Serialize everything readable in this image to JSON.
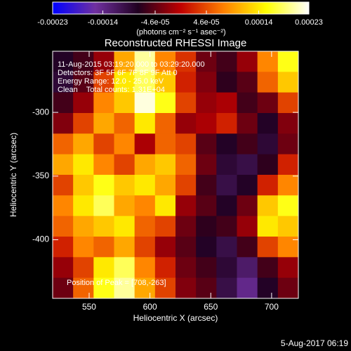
{
  "chart_data": {
    "type": "heatmap",
    "title": "Reconstructed RHESSI Image",
    "xlabel": "Heliocentric X (arcsec)",
    "ylabel": "Heliocentric Y (arcsec)",
    "colorbar_label": "(photons cm⁻² s⁻¹ asec⁻²)",
    "annotations": [
      "11-Aug-2015 03:19:20.000 to 03:29:20.000",
      "Detectors: 3F 5F 6F 7F 8F 9F Att 0",
      "Energy Range: 12.0 - 25.0 keV",
      "Clean    Total counts: 1.31E+04"
    ],
    "peak_label": "Position of Peak = [708,-263]",
    "footer": "5-Aug-2017 06:19",
    "xlim": [
      520,
      722
    ],
    "ylim": [
      -446,
      -252
    ],
    "xticks": [
      550,
      600,
      650,
      700
    ],
    "yticks": [
      -300,
      -350,
      -400
    ],
    "clim": [
      -0.00023,
      0.00023
    ],
    "cticks": [
      -0.00023,
      -0.00014,
      {
        "value": -4.6e-05,
        "label": "-4.6e-05"
      },
      {
        "value": 4.6e-05,
        "label": "4.6e-05"
      },
      0.00014,
      0.00023
    ],
    "colormap": [
      "#0000ff",
      "#7030a0",
      "#200020",
      "#c00000",
      "#ff8000",
      "#ffff00",
      "#ffffff"
    ],
    "values": [
      [
        -8e-05,
        -6e-05,
        -2e-05,
        0.0001,
        0.0002,
        8e-05,
        3e-05,
        -4e-05,
        -6e-05,
        -2e-05,
        8e-05,
        0.00016
      ],
      [
        -9e-05,
        -5e-05,
        4e-05,
        0.00014,
        0.00018,
        0.00012,
        2e-05,
        -3e-05,
        -7e-05,
        -5e-05,
        6e-05,
        0.00012
      ],
      [
        -6e-05,
        -2e-05,
        8e-05,
        0.00012,
        0.00022,
        0.00016,
        4e-05,
        -2e-05,
        -1e-05,
        -6e-05,
        -4e-05,
        4e-05
      ],
      [
        -3e-05,
        4e-05,
        0.0001,
        6e-05,
        0.00014,
        6e-05,
        -2e-05,
        -1e-05,
        2e-05,
        -4e-05,
        -8e-05,
        -3e-05
      ],
      [
        6e-05,
        0.0001,
        4e-05,
        8e-05,
        -1e-05,
        6e-05,
        4e-05,
        -5e-05,
        -8e-05,
        -6e-05,
        -9e-05,
        -4e-05
      ],
      [
        0.0001,
        0.00014,
        8e-05,
        4e-05,
        0.0001,
        0.00012,
        6e-05,
        -4e-05,
        -9e-05,
        -0.0001,
        -7e-05,
        2e-05
      ],
      [
        4e-05,
        0.00012,
        0.00016,
        0.00012,
        0.00014,
        0.0001,
        4e-05,
        -6e-05,
        -0.0001,
        -8e-05,
        2e-05,
        8e-05
      ],
      [
        8e-05,
        0.00014,
        0.00018,
        0.0001,
        8e-05,
        0.00014,
        -2e-05,
        -5e-05,
        -8e-05,
        -4e-05,
        0.00012,
        0.00016
      ],
      [
        6e-05,
        0.0001,
        0.00012,
        0.00014,
        6e-05,
        4e-05,
        -4e-05,
        -7e-05,
        -6e-05,
        -2e-05,
        0.00014,
        0.00012
      ],
      [
        2e-05,
        8e-05,
        6e-05,
        0.0001,
        4e-05,
        -2e-05,
        -5e-05,
        -8e-05,
        -0.0001,
        -6e-05,
        4e-05,
        8e-05
      ],
      [
        -2e-05,
        4e-05,
        0.00014,
        0.00018,
        8e-05,
        2e-05,
        -4e-05,
        -6e-05,
        -9e-05,
        -0.00012,
        -6e-05,
        -2e-05
      ],
      [
        -4e-05,
        6e-05,
        0.00016,
        0.0002,
        0.0001,
        4e-05,
        -3e-05,
        -5e-05,
        -0.0001,
        -0.00014,
        -8e-05,
        -4e-05
      ]
    ]
  }
}
